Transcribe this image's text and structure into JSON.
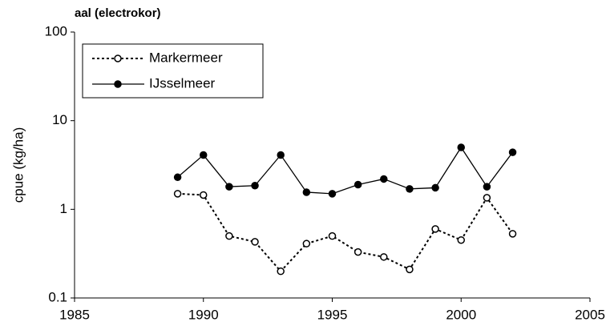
{
  "chart_data": {
    "type": "line",
    "title": "aal (electrokor)",
    "y_label": "cpue (kg/ha)",
    "yscale": "log",
    "x": [
      1989,
      1990,
      1991,
      1992,
      1993,
      1994,
      1995,
      1996,
      1997,
      1998,
      1999,
      2000,
      2001,
      2002
    ],
    "xlim": [
      1985,
      2005
    ],
    "xticks": [
      1985,
      1990,
      1995,
      2000,
      2005
    ],
    "ylim": [
      0.1,
      100
    ],
    "yticks": [
      0.1,
      1,
      10,
      100
    ],
    "legend": "upper-left",
    "series": [
      {
        "name": "Markermeer",
        "color": "#000000",
        "style": "dotted",
        "marker": "open",
        "values": [
          1.5,
          1.45,
          0.5,
          0.43,
          0.2,
          0.41,
          0.5,
          0.33,
          0.29,
          0.21,
          0.6,
          0.45,
          1.35,
          0.53
        ]
      },
      {
        "name": "IJsselmeer",
        "color": "#000000",
        "style": "solid",
        "marker": "filled",
        "values": [
          2.3,
          4.1,
          1.8,
          1.85,
          4.1,
          1.56,
          1.5,
          1.9,
          2.2,
          1.7,
          1.75,
          5.0,
          1.8,
          4.4
        ]
      }
    ]
  }
}
